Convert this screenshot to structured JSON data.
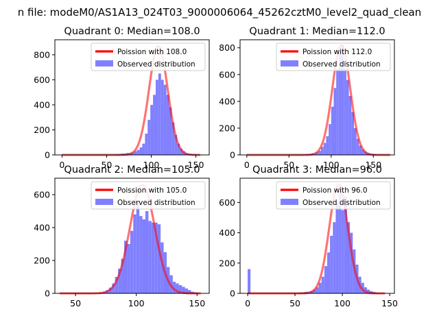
{
  "figure": {
    "suptitle": "n file: modeM0/AS1A13_024T03_9000006064_45262cztM0_level2_quad_clean"
  },
  "colors": {
    "fit_line": "#ff0000",
    "hist_fill": "#8080ff"
  },
  "chart_data": [
    {
      "type": "bar",
      "title": "Quadrant 0: Median=108.0",
      "xlim": [
        -8,
        165
      ],
      "ylim": [
        0,
        920
      ],
      "xticks": [
        0,
        50,
        100,
        150
      ],
      "yticks": [
        0,
        200,
        400,
        600,
        800
      ],
      "legend": {
        "placement": "top-right",
        "entries": [
          "Poission with 108.0",
          "Observed distribution"
        ]
      },
      "series": [
        {
          "name": "Observed distribution",
          "kind": "histogram",
          "bin_width": 3,
          "bins": [
            [
              60,
              5
            ],
            [
              63,
              5
            ],
            [
              66,
              10
            ],
            [
              69,
              10
            ],
            [
              72,
              15
            ],
            [
              75,
              15
            ],
            [
              78,
              20
            ],
            [
              81,
              30
            ],
            [
              84,
              40
            ],
            [
              87,
              60
            ],
            [
              90,
              90
            ],
            [
              93,
              170
            ],
            [
              96,
              280
            ],
            [
              99,
              400
            ],
            [
              102,
              480
            ],
            [
              105,
              600
            ],
            [
              108,
              650
            ],
            [
              111,
              600
            ],
            [
              114,
              560
            ],
            [
              117,
              480
            ],
            [
              120,
              380
            ],
            [
              123,
              260
            ],
            [
              126,
              160
            ],
            [
              129,
              90
            ],
            [
              132,
              50
            ],
            [
              135,
              30
            ],
            [
              138,
              15
            ],
            [
              141,
              10
            ],
            [
              144,
              5
            ],
            [
              147,
              5
            ],
            [
              150,
              3
            ],
            [
              153,
              2
            ]
          ]
        },
        {
          "name": "Poission with 108.0",
          "kind": "poisson_curve",
          "mean": 108.0,
          "peak": 870,
          "x_range": [
            0,
            155
          ]
        }
      ]
    },
    {
      "type": "bar",
      "title": "Quadrant 1: Median=112.0",
      "xlim": [
        -8,
        175
      ],
      "ylim": [
        0,
        860
      ],
      "xticks": [
        0,
        50,
        100,
        150
      ],
      "yticks": [
        0,
        200,
        400,
        600,
        800
      ],
      "legend": {
        "placement": "top-right",
        "entries": [
          "Poission with 112.0",
          "Observed distribution"
        ]
      },
      "series": [
        {
          "name": "Observed distribution",
          "kind": "histogram",
          "bin_width": 3,
          "bins": [
            [
              70,
              5
            ],
            [
              73,
              5
            ],
            [
              76,
              10
            ],
            [
              79,
              10
            ],
            [
              82,
              20
            ],
            [
              85,
              30
            ],
            [
              88,
              60
            ],
            [
              91,
              90
            ],
            [
              94,
              140
            ],
            [
              97,
              230
            ],
            [
              100,
              360
            ],
            [
              103,
              500
            ],
            [
              106,
              640
            ],
            [
              109,
              780
            ],
            [
              112,
              820
            ],
            [
              115,
              650
            ],
            [
              118,
              560
            ],
            [
              121,
              440
            ],
            [
              124,
              320
            ],
            [
              127,
              200
            ],
            [
              130,
              120
            ],
            [
              133,
              70
            ],
            [
              136,
              40
            ],
            [
              139,
              25
            ],
            [
              142,
              15
            ],
            [
              145,
              10
            ],
            [
              148,
              5
            ],
            [
              151,
              5
            ]
          ]
        },
        {
          "name": "Poission with 112.0",
          "kind": "poisson_curve",
          "mean": 112.0,
          "peak": 820,
          "x_range": [
            0,
            170
          ]
        }
      ]
    },
    {
      "type": "bar",
      "title": "Quadrant 2: Median=105.0",
      "xlim": [
        33,
        160
      ],
      "ylim": [
        0,
        700
      ],
      "xticks": [
        50,
        100,
        150
      ],
      "yticks": [
        0,
        200,
        400,
        600
      ],
      "legend": {
        "placement": "top-right",
        "entries": [
          "Poission with 105.0",
          "Observed distribution"
        ]
      },
      "series": [
        {
          "name": "Observed distribution",
          "kind": "histogram",
          "bin_width": 2.5,
          "bins": [
            [
              70,
              5
            ],
            [
              72.5,
              10
            ],
            [
              75,
              20
            ],
            [
              77.5,
              35
            ],
            [
              80,
              60
            ],
            [
              82.5,
              100
            ],
            [
              85,
              150
            ],
            [
              87.5,
              210
            ],
            [
              90,
              320
            ],
            [
              92.5,
              300
            ],
            [
              95,
              380
            ],
            [
              97.5,
              480
            ],
            [
              100,
              560
            ],
            [
              102.5,
              470
            ],
            [
              105,
              450
            ],
            [
              107.5,
              500
            ],
            [
              110,
              440
            ],
            [
              112.5,
              430
            ],
            [
              115,
              430
            ],
            [
              117.5,
              420
            ],
            [
              120,
              310
            ],
            [
              122.5,
              250
            ],
            [
              125,
              160
            ],
            [
              127.5,
              110
            ],
            [
              130,
              70
            ],
            [
              132.5,
              60
            ],
            [
              135,
              50
            ],
            [
              137.5,
              40
            ],
            [
              140,
              30
            ],
            [
              142.5,
              20
            ],
            [
              145,
              10
            ],
            [
              147.5,
              5
            ]
          ]
        },
        {
          "name": "Poission with 105.0",
          "kind": "poisson_curve",
          "mean": 105.0,
          "peak": 660,
          "x_range": [
            37,
            153
          ]
        }
      ]
    },
    {
      "type": "bar",
      "title": "Quadrant 3: Median=96.0",
      "xlim": [
        -8,
        155
      ],
      "ylim": [
        0,
        760
      ],
      "xticks": [
        0,
        50,
        100,
        150
      ],
      "yticks": [
        0,
        200,
        400,
        600
      ],
      "legend": {
        "placement": "top-right",
        "entries": [
          "Poission with 96.0",
          "Observed distribution"
        ]
      },
      "series": [
        {
          "name": "Observed distribution",
          "kind": "histogram",
          "bin_width": 3,
          "bins": [
            [
              0,
              160
            ],
            [
              54,
              5
            ],
            [
              57,
              5
            ],
            [
              60,
              10
            ],
            [
              63,
              10
            ],
            [
              66,
              15
            ],
            [
              69,
              25
            ],
            [
              72,
              40
            ],
            [
              75,
              70
            ],
            [
              78,
              110
            ],
            [
              81,
              180
            ],
            [
              84,
              270
            ],
            [
              87,
              380
            ],
            [
              90,
              470
            ],
            [
              93,
              600
            ],
            [
              96,
              700
            ],
            [
              99,
              550
            ],
            [
              102,
              640
            ],
            [
              105,
              470
            ],
            [
              108,
              400
            ],
            [
              111,
              290
            ],
            [
              114,
              190
            ],
            [
              117,
              110
            ],
            [
              120,
              70
            ],
            [
              123,
              40
            ],
            [
              126,
              25
            ],
            [
              129,
              15
            ],
            [
              132,
              10
            ],
            [
              135,
              5
            ]
          ]
        },
        {
          "name": "Poission with 96.0",
          "kind": "poisson_curve",
          "mean": 96.0,
          "peak": 720,
          "x_range": [
            0,
            145
          ]
        }
      ]
    }
  ]
}
